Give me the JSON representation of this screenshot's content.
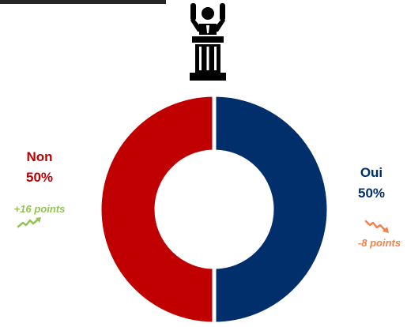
{
  "icon": {
    "podium": "podium-speaker-icon",
    "trend_up": "trend-up-icon",
    "trend_down": "trend-down-icon"
  },
  "colors": {
    "non": "#c00000",
    "oui": "#002f6c",
    "up": "#92c353",
    "down": "#f4804a"
  },
  "chart_data": {
    "type": "pie",
    "style": "donut",
    "categories": [
      "Non",
      "Oui"
    ],
    "values": [
      50,
      50
    ],
    "value_labels": [
      "50%",
      "50%"
    ],
    "annotations": [
      {
        "category": "Non",
        "text": "+16 points",
        "trend": "up"
      },
      {
        "category": "Oui",
        "text": "-8 points",
        "trend": "down"
      }
    ]
  }
}
